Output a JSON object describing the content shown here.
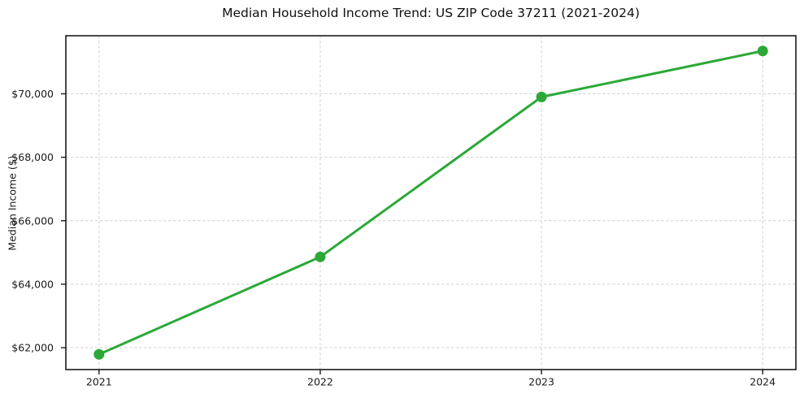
{
  "chart_data": {
    "type": "line",
    "title": "Median Household Income Trend: US ZIP Code 37211 (2021-2024)",
    "xlabel": "",
    "ylabel": "Median Income ($)",
    "x": [
      2021,
      2022,
      2023,
      2024
    ],
    "y": [
      61790,
      64860,
      69900,
      71350
    ],
    "xticks": [
      {
        "value": 2021,
        "label": "2021"
      },
      {
        "value": 2022,
        "label": "2022"
      },
      {
        "value": 2023,
        "label": "2023"
      },
      {
        "value": 2024,
        "label": "2024"
      }
    ],
    "yticks": [
      {
        "value": 62000,
        "label": "$62,000"
      },
      {
        "value": 64000,
        "label": "$64,000"
      },
      {
        "value": 66000,
        "label": "$66,000"
      },
      {
        "value": 68000,
        "label": "$68,000"
      },
      {
        "value": 70000,
        "label": "$70,000"
      }
    ],
    "xlim": [
      2020.85,
      2024.15
    ],
    "ylim": [
      61310,
      71830
    ],
    "grid": true,
    "grid_style": "dashed",
    "legend_position": "none",
    "marker": "circle",
    "colors": {
      "line": "#2ca838",
      "marker": "#2ca838",
      "grid": "#d2d2d2",
      "spine": "#1c1c1c",
      "tick_text": "#1a1a1a",
      "background": "#ffffff"
    }
  }
}
